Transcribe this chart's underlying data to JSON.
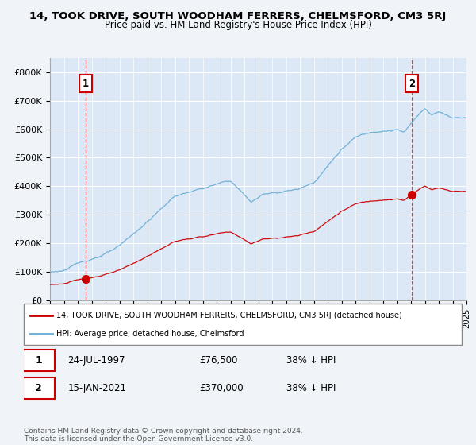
{
  "title": "14, TOOK DRIVE, SOUTH WOODHAM FERRERS, CHELMSFORD, CM3 5RJ",
  "subtitle": "Price paid vs. HM Land Registry's House Price Index (HPI)",
  "bg_color": "#f0f4f8",
  "plot_bg_color": "#dce8f5",
  "ylim": [
    0,
    850000
  ],
  "yticks": [
    0,
    100000,
    200000,
    300000,
    400000,
    500000,
    600000,
    700000,
    800000
  ],
  "ytick_labels": [
    "£0",
    "£100K",
    "£200K",
    "£300K",
    "£400K",
    "£500K",
    "£600K",
    "£700K",
    "£800K"
  ],
  "hpi_color": "#6baed6",
  "price_color": "#cc0000",
  "marker_color": "#cc0000",
  "annotation_box_color": "#cc0000",
  "sale1_x": 1997.56,
  "sale1_price": 76500,
  "sale1_label": "1",
  "sale2_x": 2021.04,
  "sale2_price": 370000,
  "sale2_label": "2",
  "legend_line1": "14, TOOK DRIVE, SOUTH WOODHAM FERRERS, CHELMSFORD, CM3 5RJ (detached house)",
  "legend_line2": "HPI: Average price, detached house, Chelmsford",
  "note1_date": "24-JUL-1997",
  "note1_price": "£76,500",
  "note1_hpi": "38% ↓ HPI",
  "note2_date": "15-JAN-2021",
  "note2_price": "£370,000",
  "note2_hpi": "38% ↓ HPI",
  "footer": "Contains HM Land Registry data © Crown copyright and database right 2024.\nThis data is licensed under the Open Government Licence v3.0."
}
